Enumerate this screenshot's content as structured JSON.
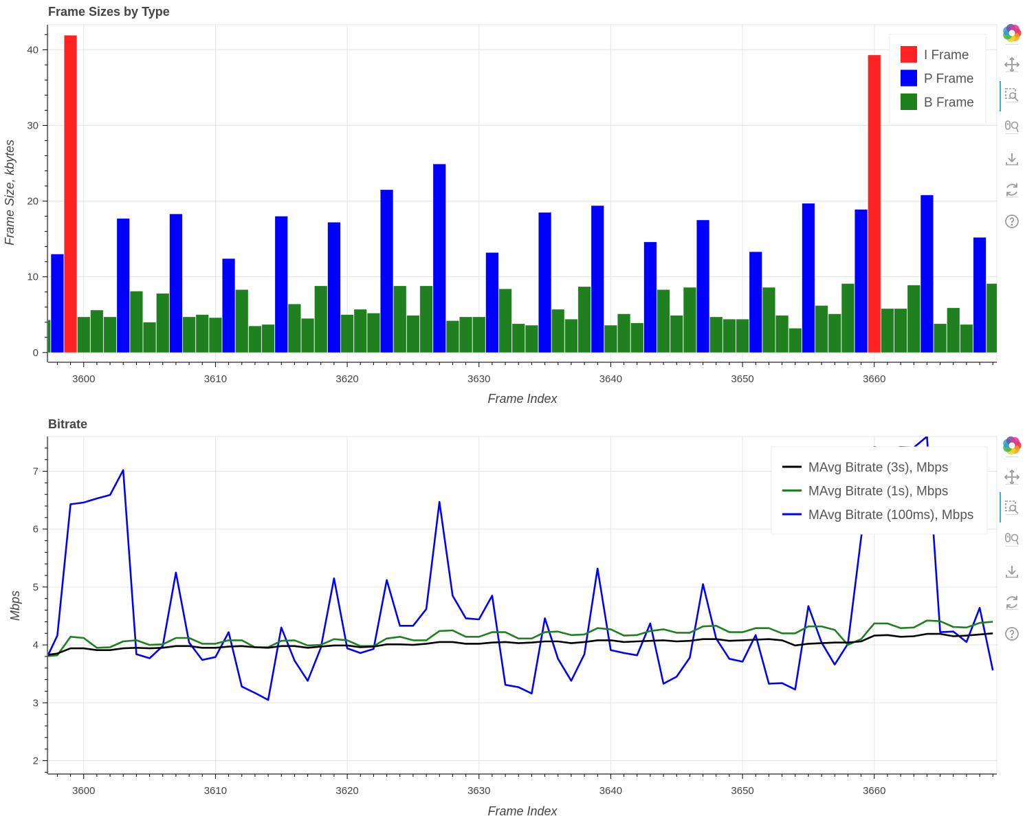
{
  "chart_data": [
    {
      "type": "bar",
      "title": "Frame Sizes by Type",
      "xlabel": "Frame Index",
      "ylabel": "Frame Size, kbytes",
      "xlim": [
        3597.3,
        3669.3
      ],
      "ylim": [
        -1.2,
        43.3
      ],
      "xticks": [
        3600,
        3610,
        3620,
        3630,
        3640,
        3650,
        3660
      ],
      "yticks": [
        0,
        10,
        20,
        30,
        40
      ],
      "grid": true,
      "legend_position": "top-right",
      "series": [
        {
          "name": "I Frame",
          "color": "#ff2222",
          "points": [
            [
              3599,
              41.9
            ],
            [
              3660,
              39.3
            ]
          ]
        },
        {
          "name": "P Frame",
          "color": "#0000ff",
          "points": [
            [
              3598,
              13.0
            ],
            [
              3603,
              17.7
            ],
            [
              3607,
              18.3
            ],
            [
              3611,
              12.4
            ],
            [
              3615,
              18.0
            ],
            [
              3619,
              17.2
            ],
            [
              3623,
              21.5
            ],
            [
              3627,
              24.9
            ],
            [
              3631,
              13.2
            ],
            [
              3635,
              18.5
            ],
            [
              3639,
              19.4
            ],
            [
              3643,
              14.6
            ],
            [
              3647,
              17.5
            ],
            [
              3651,
              13.3
            ],
            [
              3655,
              19.7
            ],
            [
              3659,
              18.9
            ],
            [
              3664,
              20.8
            ],
            [
              3668,
              15.2
            ]
          ]
        },
        {
          "name": "B Frame",
          "color": "#208020",
          "points": [
            [
              3597,
              4.3
            ],
            [
              3600,
              4.7
            ],
            [
              3601,
              5.6
            ],
            [
              3602,
              4.7
            ],
            [
              3604,
              8.1
            ],
            [
              3605,
              4.0
            ],
            [
              3606,
              7.8
            ],
            [
              3608,
              4.7
            ],
            [
              3609,
              5.0
            ],
            [
              3610,
              4.6
            ],
            [
              3612,
              8.3
            ],
            [
              3613,
              3.5
            ],
            [
              3614,
              3.7
            ],
            [
              3616,
              6.4
            ],
            [
              3617,
              4.5
            ],
            [
              3618,
              8.8
            ],
            [
              3620,
              5.0
            ],
            [
              3621,
              5.7
            ],
            [
              3622,
              5.2
            ],
            [
              3624,
              8.8
            ],
            [
              3625,
              4.9
            ],
            [
              3626,
              8.8
            ],
            [
              3628,
              4.2
            ],
            [
              3629,
              4.7
            ],
            [
              3630,
              4.7
            ],
            [
              3632,
              8.4
            ],
            [
              3633,
              3.8
            ],
            [
              3634,
              3.6
            ],
            [
              3636,
              5.7
            ],
            [
              3637,
              4.4
            ],
            [
              3638,
              8.7
            ],
            [
              3640,
              3.6
            ],
            [
              3641,
              5.1
            ],
            [
              3642,
              3.9
            ],
            [
              3644,
              8.3
            ],
            [
              3645,
              4.9
            ],
            [
              3646,
              8.6
            ],
            [
              3648,
              4.7
            ],
            [
              3649,
              4.4
            ],
            [
              3650,
              4.4
            ],
            [
              3652,
              8.6
            ],
            [
              3653,
              4.9
            ],
            [
              3654,
              3.2
            ],
            [
              3656,
              6.2
            ],
            [
              3657,
              5.1
            ],
            [
              3658,
              9.1
            ],
            [
              3661,
              5.8
            ],
            [
              3662,
              5.8
            ],
            [
              3663,
              8.9
            ],
            [
              3665,
              3.8
            ],
            [
              3666,
              5.9
            ],
            [
              3667,
              3.7
            ],
            [
              3669,
              9.1
            ]
          ]
        }
      ]
    },
    {
      "type": "line",
      "title": "Bitrate",
      "xlabel": "Frame Index",
      "ylabel": "Mbps",
      "xlim": [
        3597.3,
        3669.3
      ],
      "ylim": [
        1.78,
        7.6
      ],
      "xticks": [
        3600,
        3610,
        3620,
        3630,
        3640,
        3650,
        3660
      ],
      "yticks": [
        2,
        3,
        4,
        5,
        6,
        7
      ],
      "grid": true,
      "legend_position": "top-right",
      "x": [
        3597,
        3598,
        3599,
        3600,
        3601,
        3602,
        3603,
        3604,
        3605,
        3606,
        3607,
        3608,
        3609,
        3610,
        3611,
        3612,
        3613,
        3614,
        3615,
        3616,
        3617,
        3618,
        3619,
        3620,
        3621,
        3622,
        3623,
        3624,
        3625,
        3626,
        3627,
        3628,
        3629,
        3630,
        3631,
        3632,
        3633,
        3634,
        3635,
        3636,
        3637,
        3638,
        3639,
        3640,
        3641,
        3642,
        3643,
        3644,
        3645,
        3646,
        3647,
        3648,
        3649,
        3650,
        3651,
        3652,
        3653,
        3654,
        3655,
        3656,
        3657,
        3658,
        3659,
        3660,
        3661,
        3662,
        3663,
        3664,
        3665,
        3666,
        3667,
        3668,
        3669
      ],
      "series": [
        {
          "name": "MAvg Bitrate (3s), Mbps",
          "color": "#000000",
          "values": [
            3.82,
            3.85,
            3.94,
            3.94,
            3.91,
            3.91,
            3.94,
            3.95,
            3.94,
            3.95,
            3.98,
            3.98,
            3.95,
            3.95,
            3.97,
            3.98,
            3.96,
            3.95,
            3.98,
            3.98,
            3.95,
            3.97,
            3.99,
            3.99,
            3.96,
            3.97,
            4.01,
            4.01,
            4.0,
            4.02,
            4.05,
            4.05,
            4.02,
            4.02,
            4.04,
            4.05,
            4.03,
            4.04,
            4.06,
            4.06,
            4.03,
            4.05,
            4.08,
            4.08,
            4.05,
            4.06,
            4.07,
            4.08,
            4.06,
            4.07,
            4.1,
            4.1,
            4.07,
            4.08,
            4.09,
            4.1,
            4.08,
            3.99,
            4.02,
            4.03,
            4.04,
            4.04,
            4.06,
            4.16,
            4.17,
            4.14,
            4.15,
            4.19,
            4.19,
            4.15,
            4.16,
            4.18,
            4.2
          ]
        },
        {
          "name": "MAvg Bitrate (1s), Mbps",
          "color": "#208020",
          "values": [
            3.8,
            3.82,
            4.14,
            4.12,
            3.95,
            3.96,
            4.06,
            4.08,
            4.0,
            4.01,
            4.12,
            4.12,
            4.02,
            4.02,
            4.08,
            4.08,
            3.96,
            3.96,
            4.07,
            4.08,
            3.99,
            4.0,
            4.1,
            4.08,
            3.98,
            3.98,
            4.11,
            4.14,
            4.08,
            4.08,
            4.24,
            4.25,
            4.14,
            4.14,
            4.22,
            4.22,
            4.11,
            4.11,
            4.22,
            4.23,
            4.17,
            4.18,
            4.29,
            4.27,
            4.16,
            4.17,
            4.24,
            4.27,
            4.21,
            4.21,
            4.32,
            4.33,
            4.22,
            4.22,
            4.29,
            4.29,
            4.2,
            4.2,
            4.32,
            4.32,
            4.26,
            4.0,
            4.1,
            4.37,
            4.37,
            4.29,
            4.3,
            4.42,
            4.41,
            4.31,
            4.3,
            4.38,
            4.4
          ]
        },
        {
          "name": "MAvg Bitrate (100ms), Mbps",
          "color": "#0000ff",
          "values": [
            3.68,
            4.16,
            6.43,
            6.46,
            6.53,
            6.59,
            7.02,
            3.84,
            3.77,
            3.98,
            5.25,
            4.04,
            3.74,
            3.79,
            4.22,
            3.28,
            3.17,
            3.05,
            4.3,
            3.73,
            3.38,
            3.95,
            5.15,
            3.94,
            3.86,
            3.93,
            5.12,
            4.33,
            4.33,
            4.62,
            6.47,
            4.85,
            4.46,
            4.44,
            4.85,
            3.31,
            3.27,
            3.16,
            4.46,
            3.76,
            3.38,
            3.84,
            5.32,
            3.91,
            3.86,
            3.82,
            4.37,
            3.33,
            3.45,
            3.78,
            5.05,
            4.11,
            3.76,
            3.71,
            4.17,
            3.33,
            3.34,
            3.23,
            4.67,
            4.04,
            3.66,
            4.02,
            5.85,
            7.42,
            7.38,
            7.42,
            7.41,
            7.6,
            4.22,
            4.23,
            4.05,
            4.64,
            3.56
          ]
        }
      ]
    }
  ],
  "toolbar": {
    "tools": [
      "bokeh-logo-icon",
      "pan-icon",
      "box-zoom-icon",
      "wheel-zoom-icon",
      "save-icon",
      "reset-icon",
      "help-icon"
    ]
  }
}
